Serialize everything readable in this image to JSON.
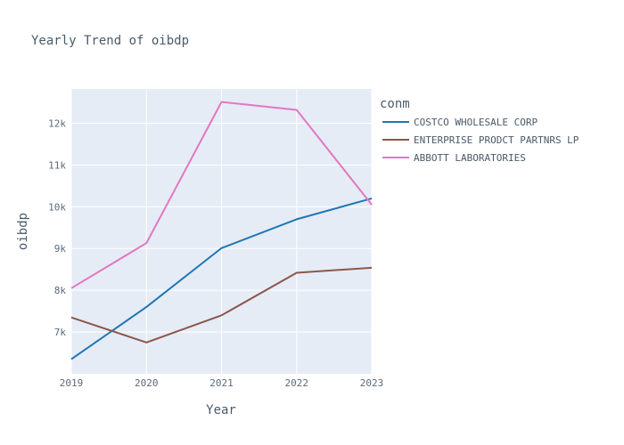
{
  "chart_data": {
    "type": "line",
    "title": "Yearly Trend of oibdp",
    "xlabel": "Year",
    "ylabel": "oibdp",
    "x": [
      2019,
      2020,
      2021,
      2022,
      2023
    ],
    "x_tick_labels": [
      "2019",
      "2020",
      "2021",
      "2022",
      "2023"
    ],
    "ylim": [
      6000,
      12820
    ],
    "y_ticks": [
      7000,
      8000,
      9000,
      10000,
      11000,
      12000
    ],
    "y_tick_labels": [
      "7k",
      "8k",
      "9k",
      "10k",
      "11k",
      "12k"
    ],
    "grid": true,
    "legend_title": "conm",
    "legend_position": "right",
    "series": [
      {
        "name": "COSTCO WHOLESALE CORP",
        "color": "#1f77b4",
        "values": [
          6350,
          7600,
          9010,
          9700,
          10200
        ]
      },
      {
        "name": "ENTERPRISE PRODCT PARTNRS LP",
        "color": "#8c564b",
        "values": [
          7350,
          6750,
          7400,
          8420,
          8540
        ]
      },
      {
        "name": "ABBOTT LABORATORIES",
        "color": "#e377c2",
        "values": [
          8050,
          9130,
          12510,
          12320,
          10050
        ]
      }
    ]
  }
}
